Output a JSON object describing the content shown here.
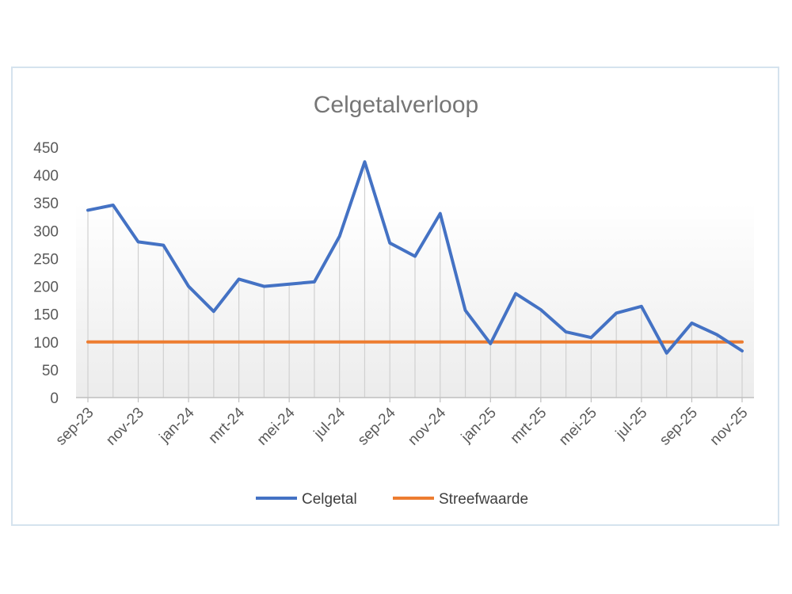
{
  "chart_data": {
    "type": "line",
    "title": "Celgetalverloop",
    "xlabel": "",
    "ylabel": "",
    "ylim": [
      0,
      450
    ],
    "yticks": [
      0,
      50,
      100,
      150,
      200,
      250,
      300,
      350,
      400,
      450
    ],
    "x": [
      "sep-23",
      "okt-23",
      "nov-23",
      "dec-23",
      "jan-24",
      "feb-24",
      "mrt-24",
      "apr-24",
      "mei-24",
      "jun-24",
      "jul-24",
      "aug-24",
      "sep-24",
      "okt-24",
      "nov-24",
      "dec-24",
      "jan-25",
      "feb-25",
      "mrt-25",
      "apr-25",
      "mei-25",
      "jun-25",
      "jul-25",
      "aug-25",
      "sep-25",
      "okt-25",
      "nov-25"
    ],
    "x_tick_labels": [
      "sep-23",
      "nov-23",
      "jan-24",
      "mrt-24",
      "mei-24",
      "jul-24",
      "sep-24",
      "nov-24",
      "jan-25",
      "mrt-25",
      "mei-25",
      "jul-25",
      "sep-25",
      "nov-25"
    ],
    "series": [
      {
        "name": "Celgetal",
        "color": "#4472c4",
        "values": [
          337,
          346,
          280,
          274,
          200,
          155,
          213,
          200,
          204,
          208,
          290,
          424,
          278,
          254,
          331,
          157,
          97,
          187,
          158,
          118,
          108,
          152,
          164,
          80,
          134,
          113,
          84
        ]
      },
      {
        "name": "Streefwaarde",
        "color": "#ed7d31",
        "values": [
          100,
          100,
          100,
          100,
          100,
          100,
          100,
          100,
          100,
          100,
          100,
          100,
          100,
          100,
          100,
          100,
          100,
          100,
          100,
          100,
          100,
          100,
          100,
          100,
          100,
          100,
          100
        ]
      }
    ],
    "drop_lines": true,
    "legend_position": "bottom",
    "grid": false
  }
}
